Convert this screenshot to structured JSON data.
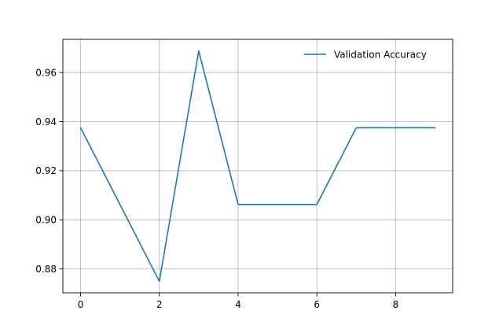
{
  "chart_data": {
    "type": "line",
    "title": "",
    "xlabel": "",
    "ylabel": "",
    "xlim": [
      -0.45,
      9.45
    ],
    "ylim": [
      0.8703,
      0.9735
    ],
    "xticks": [
      0,
      2,
      4,
      6,
      8
    ],
    "yticks": [
      0.88,
      0.9,
      0.92,
      0.94,
      0.96
    ],
    "xtick_labels": [
      "0",
      "2",
      "4",
      "6",
      "8"
    ],
    "ytick_labels": [
      "0.88",
      "0.90",
      "0.92",
      "0.94",
      "0.96"
    ],
    "grid": true,
    "legend_position": "top-right",
    "series": [
      {
        "name": "Validation Accuracy",
        "color": "#1f77b4",
        "x": [
          0,
          1,
          2,
          3,
          4,
          5,
          6,
          7,
          8,
          9
        ],
        "y": [
          0.9375,
          0.90625,
          0.875,
          0.96875,
          0.90625,
          0.90625,
          0.90625,
          0.9375,
          0.9375,
          0.9375
        ]
      }
    ]
  }
}
